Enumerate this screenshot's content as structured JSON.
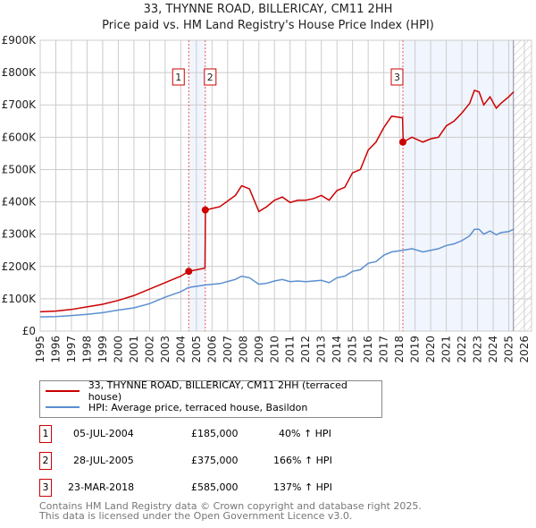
{
  "chart_data": {
    "type": "line",
    "title": "33, THYNNE ROAD, BILLERICAY, CM11 2HH",
    "subtitle": "Price paid vs. HM Land Registry's House Price Index (HPI)",
    "xlim": [
      1995,
      2026
    ],
    "ylim": [
      0,
      900000
    ],
    "x_ticks": [
      "1995",
      "1996",
      "1997",
      "1998",
      "1999",
      "2000",
      "2001",
      "2002",
      "2003",
      "2004",
      "2005",
      "2006",
      "2007",
      "2008",
      "2009",
      "2010",
      "2011",
      "2012",
      "2013",
      "2014",
      "2015",
      "2016",
      "2017",
      "2018",
      "2019",
      "2020",
      "2021",
      "2022",
      "2023",
      "2024",
      "2025",
      "2026"
    ],
    "y_ticks": [
      {
        "v": 0,
        "l": "£0"
      },
      {
        "v": 100000,
        "l": "£100K"
      },
      {
        "v": 200000,
        "l": "£200K"
      },
      {
        "v": 300000,
        "l": "£300K"
      },
      {
        "v": 400000,
        "l": "£400K"
      },
      {
        "v": 500000,
        "l": "£500K"
      },
      {
        "v": 600000,
        "l": "£600K"
      },
      {
        "v": 700000,
        "l": "£700K"
      },
      {
        "v": 800000,
        "l": "£800K"
      },
      {
        "v": 900000,
        "l": "£900K"
      }
    ],
    "series": [
      {
        "name": "33, THYNNE ROAD, BILLERICAY, CM11 2HH (terraced house)",
        "color": "#cc0000",
        "x": [
          1995,
          1996,
          1997,
          1998,
          1999,
          2000,
          2001,
          2002,
          2003,
          2004,
          2004.5,
          2005.55,
          2005.58,
          2006.5,
          2007.5,
          2007.9,
          2008.4,
          2009,
          2009.5,
          2010,
          2010.5,
          2011,
          2011.5,
          2012,
          2012.5,
          2013,
          2013.5,
          2014,
          2014.5,
          2015,
          2015.5,
          2016,
          2016.5,
          2017,
          2017.5,
          2018.2,
          2018.24,
          2018.8,
          2019.5,
          2020,
          2020.5,
          2021,
          2021.5,
          2022,
          2022.5,
          2022.8,
          2023.1,
          2023.4,
          2023.8,
          2024.2,
          2024.5,
          2025,
          2025.3
        ],
        "y": [
          60000,
          62000,
          67000,
          75000,
          83000,
          95000,
          110000,
          130000,
          150000,
          170000,
          185000,
          195000,
          375000,
          385000,
          420000,
          450000,
          440000,
          370000,
          385000,
          405000,
          415000,
          398000,
          405000,
          405000,
          410000,
          420000,
          405000,
          435000,
          445000,
          490000,
          500000,
          560000,
          585000,
          630000,
          665000,
          660000,
          585000,
          600000,
          585000,
          595000,
          600000,
          635000,
          650000,
          675000,
          705000,
          745000,
          740000,
          700000,
          725000,
          690000,
          705000,
          725000,
          740000
        ]
      },
      {
        "name": "HPI: Average price, terraced house, Basildon",
        "color": "#5b8fd0",
        "x": [
          1995,
          1996,
          1997,
          1998,
          1999,
          2000,
          2001,
          2002,
          2003,
          2004,
          2004.5,
          2005.6,
          2006.5,
          2007.5,
          2007.9,
          2008.4,
          2009,
          2009.5,
          2010,
          2010.5,
          2011,
          2011.5,
          2012,
          2012.5,
          2013,
          2013.5,
          2014,
          2014.5,
          2015,
          2015.5,
          2016,
          2016.5,
          2017,
          2017.5,
          2018.2,
          2018.8,
          2019.5,
          2020,
          2020.5,
          2021,
          2021.5,
          2022,
          2022.5,
          2022.8,
          2023.1,
          2023.4,
          2023.8,
          2024.2,
          2024.5,
          2025,
          2025.3
        ],
        "y": [
          44000,
          45000,
          48000,
          52000,
          57000,
          65000,
          72000,
          85000,
          105000,
          122000,
          135000,
          143000,
          147000,
          160000,
          170000,
          165000,
          145000,
          148000,
          155000,
          160000,
          153000,
          155000,
          153000,
          155000,
          157000,
          150000,
          165000,
          170000,
          185000,
          190000,
          210000,
          215000,
          235000,
          245000,
          250000,
          255000,
          245000,
          250000,
          255000,
          265000,
          270000,
          280000,
          295000,
          315000,
          315000,
          300000,
          310000,
          298000,
          305000,
          308000,
          315000
        ]
      }
    ],
    "sales": [
      {
        "n": "1",
        "x": 2004.51,
        "y": 185000
      },
      {
        "n": "2",
        "x": 2005.57,
        "y": 375000
      },
      {
        "n": "3",
        "x": 2018.22,
        "y": 585000
      }
    ],
    "shaded": [
      [
        2004.51,
        2005.57
      ],
      [
        2018.22,
        2025.3
      ]
    ],
    "hatch_from": 2025.3
  },
  "legend": [
    {
      "label": "33, THYNNE ROAD, BILLERICAY, CM11 2HH (terraced house)",
      "color": "#cc0000"
    },
    {
      "label": "HPI: Average price, terraced house, Basildon",
      "color": "#5b8fd0"
    }
  ],
  "transactions": [
    {
      "n": "1",
      "date": "05-JUL-2004",
      "price": "£185,000",
      "hpi": "40% ↑ HPI"
    },
    {
      "n": "2",
      "date": "28-JUL-2005",
      "price": "£375,000",
      "hpi": "166% ↑ HPI"
    },
    {
      "n": "3",
      "date": "23-MAR-2018",
      "price": "£585,000",
      "hpi": "137% ↑ HPI"
    }
  ],
  "footer": {
    "line1": "Contains HM Land Registry data © Crown copyright and database right 2025.",
    "line2": "This data is licensed under the Open Government Licence v3.0."
  }
}
